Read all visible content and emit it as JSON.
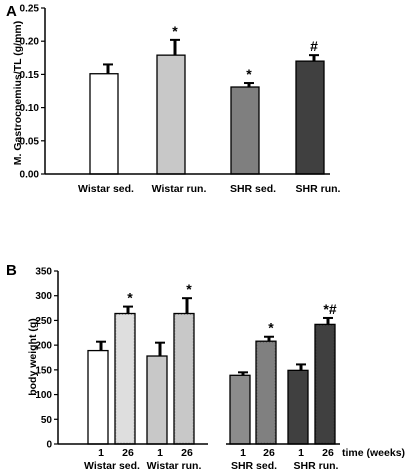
{
  "chart_data": [
    {
      "panel": "A",
      "type": "bar",
      "ylabel": "M. Gastrocnemius/TL (g/mm)",
      "ylim": [
        0,
        0.25
      ],
      "yticks": [
        "0.00",
        "0.05",
        "0.10",
        "0.15",
        "0.20",
        "0.25"
      ],
      "categories": [
        "Wistar sed.",
        "Wistar run.",
        "SHR sed.",
        "SHR run."
      ],
      "values": [
        0.151,
        0.179,
        0.131,
        0.17
      ],
      "errors": [
        0.014,
        0.023,
        0.006,
        0.009
      ],
      "colors": [
        "#ffffff",
        "#c8c8c8",
        "#7f7f7f",
        "#404040"
      ],
      "annotations": [
        "",
        "*",
        "*",
        "#"
      ]
    },
    {
      "panel": "B",
      "type": "bar",
      "ylabel": "body weight (g)",
      "ylim": [
        0,
        350
      ],
      "yticks": [
        "0",
        "50",
        "100",
        "150",
        "200",
        "250",
        "300",
        "350"
      ],
      "xlabel": "time (weeks)",
      "groups": [
        "Wistar sed.",
        "Wistar run.",
        "SHR sed.",
        "SHR run."
      ],
      "categories": [
        "1",
        "26",
        "1",
        "26",
        "1",
        "26",
        "1",
        "26"
      ],
      "values": [
        189,
        264,
        178,
        264,
        139,
        208,
        149,
        242
      ],
      "errors": [
        18,
        14,
        27,
        31,
        6,
        9,
        12,
        13
      ],
      "colors": [
        "#ffffff",
        "#dedede",
        "#c8c8c8",
        "#c8c8c8",
        "#8c8c8c",
        "#808080",
        "#404040",
        "#404040"
      ],
      "annotations": [
        "",
        "*",
        "",
        "*",
        "",
        "*",
        "",
        "*#"
      ]
    }
  ]
}
